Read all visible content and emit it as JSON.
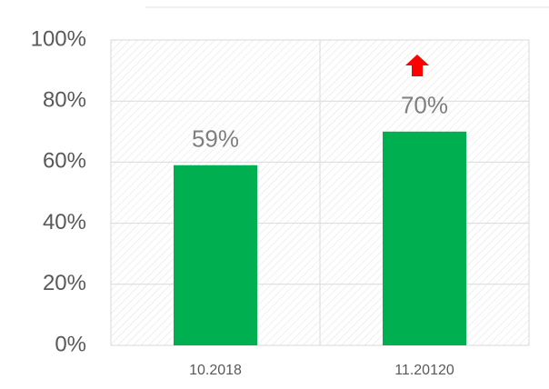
{
  "chart_data": {
    "type": "bar",
    "categories": [
      "10.2018",
      "11.20120"
    ],
    "values": [
      59,
      70
    ],
    "value_labels": [
      "59%",
      "70%"
    ],
    "color": "#00b050",
    "ylim": [
      0,
      100
    ],
    "yticks": [
      {
        "value": 0,
        "label": "0%"
      },
      {
        "value": 20,
        "label": "20%"
      },
      {
        "value": 40,
        "label": "40%"
      },
      {
        "value": 60,
        "label": "60%"
      },
      {
        "value": 80,
        "label": "80%"
      },
      {
        "value": 100,
        "label": "100%"
      }
    ],
    "grid": true
  }
}
